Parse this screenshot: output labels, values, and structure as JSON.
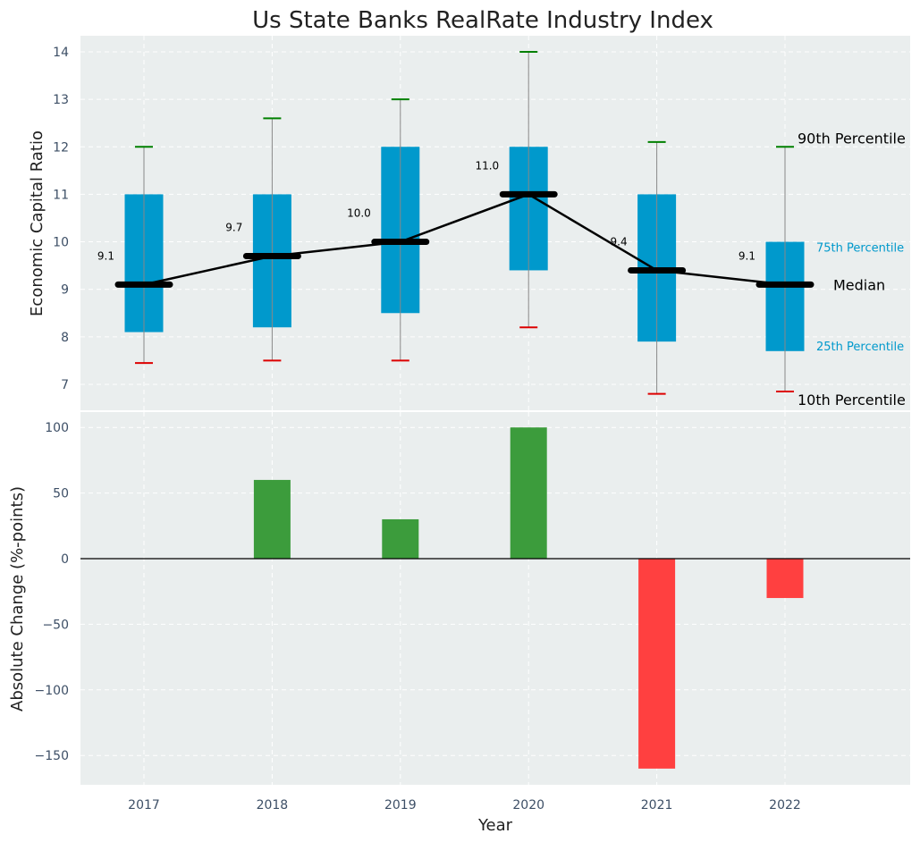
{
  "chart_data": [
    {
      "type": "box",
      "title": "Us State Banks RealRate Industry Index",
      "ylabel": "Economic Capital Ratio",
      "ylim": [
        6.5,
        14.35
      ],
      "yticks": [
        7,
        8,
        9,
        10,
        11,
        12,
        13,
        14
      ],
      "categories": [
        "2017",
        "2018",
        "2019",
        "2020",
        "2021",
        "2022"
      ],
      "p10": [
        7.45,
        7.5,
        7.5,
        8.2,
        6.8,
        6.85
      ],
      "p25": [
        8.1,
        8.2,
        8.5,
        9.4,
        7.9,
        7.7
      ],
      "median": [
        9.1,
        9.7,
        10.0,
        11.0,
        9.4,
        9.1
      ],
      "p75": [
        11.0,
        11.0,
        12.0,
        12.0,
        11.0,
        10.0
      ],
      "p90": [
        12.0,
        12.6,
        13.0,
        14.0,
        12.1,
        12.0
      ],
      "median_labels": [
        "9.1",
        "9.7",
        "10.0",
        "11.0",
        "9.4",
        "9.1"
      ],
      "legend": {
        "p90": "90th Percentile",
        "p75": "75th Percentile",
        "median": "Median",
        "p25": "25th Percentile",
        "p10": "10th Percentile"
      },
      "grid": true
    },
    {
      "type": "bar",
      "xlabel": "Year",
      "ylabel": "Absolute Change (%-points)",
      "categories": [
        "2017",
        "2018",
        "2019",
        "2020",
        "2021",
        "2022"
      ],
      "values": [
        0,
        60,
        30,
        100,
        -160,
        -30
      ],
      "ylim": [
        -172,
        112
      ],
      "yticks": [
        100,
        50,
        0,
        -50,
        -100,
        -150
      ],
      "ytick_labels": [
        "100",
        "50",
        "0",
        "−50",
        "−100",
        "−150"
      ],
      "grid": true
    }
  ],
  "colors": {
    "box": "#0099cc",
    "positive": "#3c9c3c",
    "negative": "#ff4040",
    "median_line": "#000000",
    "p90_cap": "#008000",
    "p10_cap": "#dd0000",
    "plot_bg": "#eaeeee",
    "whisker": "#888888"
  }
}
